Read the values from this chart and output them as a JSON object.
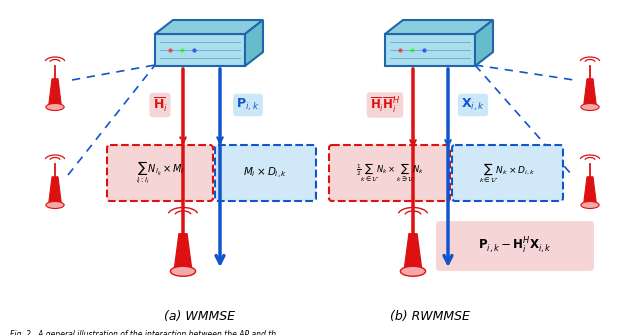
{
  "fig_width": 6.4,
  "fig_height": 3.35,
  "dpi": 100,
  "bg_color": "#ffffff",
  "caption": "Fig. 2.  A general illustration of the interaction between the AP and th",
  "subtitle_a": "(a) WMMSE",
  "subtitle_b": "(b) RWMMSE",
  "red_color": "#dd1111",
  "blue_color": "#1155cc",
  "box_red_bg": "#f5d5d5",
  "box_blue_bg": "#d0e8f8",
  "label_red_bg": "#f5d5d5",
  "label_blue_bg": "#cce8f8",
  "ap_face": "#aaddee",
  "ap_top": "#88ccdd",
  "ap_side": "#66bbcc",
  "ap_edge": "#2266aa"
}
